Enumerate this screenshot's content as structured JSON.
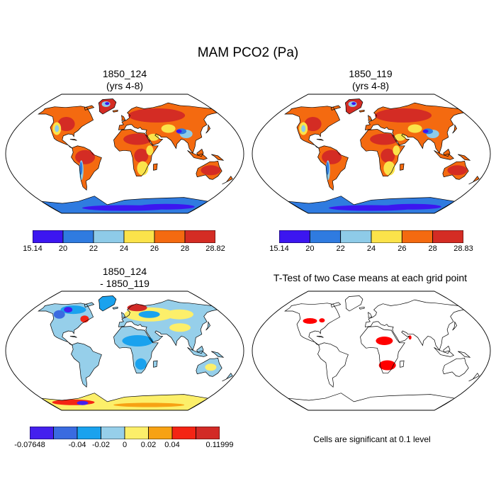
{
  "title": "MAM PCO2 (Pa)",
  "panels": [
    {
      "id": "p1",
      "title_line1": "1850_124",
      "title_line2": "(yrs 4-8)"
    },
    {
      "id": "p2",
      "title_line1": "1850_119",
      "title_line2": "(yrs 4-8)"
    },
    {
      "id": "p3",
      "title_line1": "1850_124",
      "title_line2": "- 1850_119"
    },
    {
      "id": "p4",
      "title_line1": "T-Test of two Case means at each grid point",
      "title_line2": ""
    }
  ],
  "colorbars": [
    {
      "id": "cb1",
      "colors": [
        "#3c16f0",
        "#2f7be0",
        "#8ecbe8",
        "#fbe34a",
        "#f46a10",
        "#d42c24"
      ],
      "labels": [
        "15.14",
        "20",
        "22",
        "24",
        "26",
        "28",
        "28.82"
      ]
    },
    {
      "id": "cb2",
      "colors": [
        "#3c16f0",
        "#2f7be0",
        "#8ecbe8",
        "#fbe34a",
        "#f46a10",
        "#d42c24"
      ],
      "labels": [
        "15.14",
        "20",
        "22",
        "24",
        "26",
        "28",
        "28.83"
      ]
    },
    {
      "id": "cb3",
      "colors": [
        "#4420ee",
        "#3a6be0",
        "#1aa2ee",
        "#96cfea",
        "#fcef6a",
        "#f7a214",
        "#f42414",
        "#d22a26"
      ],
      "labels": [
        "-0.07648",
        "-0.04",
        "-0.02",
        "0",
        "0.02",
        "0.04",
        "0.11999"
      ]
    }
  ],
  "significance_note": "Cells are significant at 0.1 level",
  "colors": {
    "land_high": "#f46a10",
    "land_max": "#d42c24",
    "land_mid": "#fbe34a",
    "land_low": "#8ecbe8",
    "land_min": "#3c16f0",
    "significant": "#ff0000"
  }
}
